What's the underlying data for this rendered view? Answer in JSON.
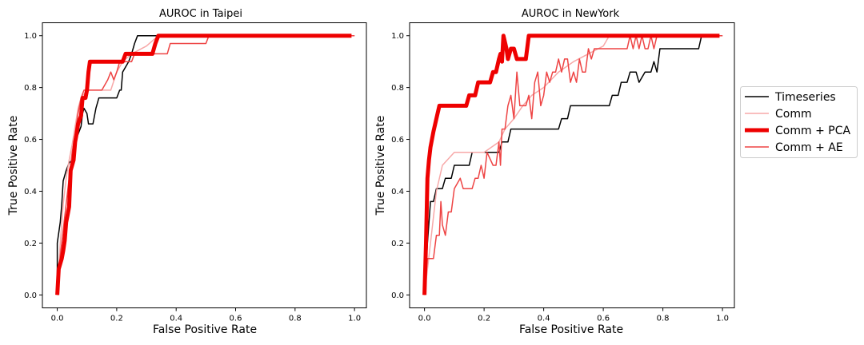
{
  "chart_data": [
    {
      "type": "line",
      "title": "AUROC in Taipei",
      "xlabel": "False Positive Rate",
      "ylabel": "True Positive Rate",
      "xlim": [
        -0.05,
        1.04
      ],
      "ylim": [
        -0.05,
        1.05
      ],
      "xticks": [
        "0.0",
        "0.2",
        "0.4",
        "0.6",
        "0.8",
        "1.0"
      ],
      "yticks": [
        "0.0",
        "0.2",
        "0.4",
        "0.6",
        "0.8",
        "1.0"
      ],
      "grid": false,
      "series": [
        {
          "name": "Timeseries",
          "points": [
            [
              0,
              0
            ],
            [
              0,
              0.2
            ],
            [
              0.01,
              0.28
            ],
            [
              0.015,
              0.35
            ],
            [
              0.02,
              0.44
            ],
            [
              0.03,
              0.48
            ],
            [
              0.04,
              0.51
            ],
            [
              0.05,
              0.52
            ],
            [
              0.055,
              0.58
            ],
            [
              0.06,
              0.6
            ],
            [
              0.07,
              0.62
            ],
            [
              0.08,
              0.65
            ],
            [
              0.085,
              0.7
            ],
            [
              0.09,
              0.72
            ],
            [
              0.1,
              0.7
            ],
            [
              0.105,
              0.66
            ],
            [
              0.12,
              0.66
            ],
            [
              0.13,
              0.72
            ],
            [
              0.14,
              0.76
            ],
            [
              0.2,
              0.76
            ],
            [
              0.21,
              0.79
            ],
            [
              0.215,
              0.79
            ],
            [
              0.22,
              0.86
            ],
            [
              0.24,
              0.9
            ],
            [
              0.25,
              0.93
            ],
            [
              0.26,
              0.97
            ],
            [
              0.27,
              1.0
            ],
            [
              1.0,
              1.0
            ]
          ]
        },
        {
          "name": "Comm",
          "points": [
            [
              0,
              0
            ],
            [
              0.01,
              0.2
            ],
            [
              0.02,
              0.35
            ],
            [
              0.03,
              0.45
            ],
            [
              0.04,
              0.52
            ],
            [
              0.05,
              0.58
            ],
            [
              0.06,
              0.65
            ],
            [
              0.07,
              0.72
            ],
            [
              0.08,
              0.76
            ],
            [
              0.1,
              0.79
            ],
            [
              0.18,
              0.79
            ],
            [
              0.2,
              0.86
            ],
            [
              0.22,
              0.9
            ],
            [
              0.25,
              0.93
            ],
            [
              0.3,
              0.96
            ],
            [
              0.34,
              1.0
            ],
            [
              1.0,
              1.0
            ]
          ]
        },
        {
          "name": "Comm + PCA",
          "points": [
            [
              0,
              0
            ],
            [
              0.005,
              0.1
            ],
            [
              0.015,
              0.14
            ],
            [
              0.02,
              0.17
            ],
            [
              0.025,
              0.21
            ],
            [
              0.03,
              0.28
            ],
            [
              0.035,
              0.31
            ],
            [
              0.04,
              0.34
            ],
            [
              0.045,
              0.48
            ],
            [
              0.055,
              0.52
            ],
            [
              0.06,
              0.59
            ],
            [
              0.065,
              0.62
            ],
            [
              0.07,
              0.66
            ],
            [
              0.08,
              0.69
            ],
            [
              0.085,
              0.76
            ],
            [
              0.095,
              0.76
            ],
            [
              0.1,
              0.79
            ],
            [
              0.105,
              0.86
            ],
            [
              0.11,
              0.9
            ],
            [
              0.22,
              0.9
            ],
            [
              0.23,
              0.93
            ],
            [
              0.32,
              0.93
            ],
            [
              0.33,
              0.97
            ],
            [
              0.34,
              1.0
            ],
            [
              0.99,
              1.0
            ]
          ]
        },
        {
          "name": "Comm + AE",
          "points": [
            [
              0,
              0
            ],
            [
              0.01,
              0.15
            ],
            [
              0.02,
              0.25
            ],
            [
              0.03,
              0.35
            ],
            [
              0.04,
              0.45
            ],
            [
              0.05,
              0.55
            ],
            [
              0.06,
              0.62
            ],
            [
              0.07,
              0.7
            ],
            [
              0.08,
              0.76
            ],
            [
              0.09,
              0.79
            ],
            [
              0.15,
              0.79
            ],
            [
              0.17,
              0.83
            ],
            [
              0.18,
              0.86
            ],
            [
              0.19,
              0.83
            ],
            [
              0.2,
              0.86
            ],
            [
              0.21,
              0.9
            ],
            [
              0.25,
              0.9
            ],
            [
              0.26,
              0.93
            ],
            [
              0.37,
              0.93
            ],
            [
              0.38,
              0.97
            ],
            [
              0.5,
              0.97
            ],
            [
              0.51,
              1.0
            ],
            [
              1.0,
              1.0
            ]
          ]
        }
      ]
    },
    {
      "type": "line",
      "title": "AUROC in NewYork",
      "xlabel": "False Positive Rate",
      "ylabel": "True Positive Rate",
      "xlim": [
        -0.05,
        1.04
      ],
      "ylim": [
        -0.05,
        1.05
      ],
      "xticks": [
        "0.0",
        "0.2",
        "0.4",
        "0.6",
        "0.8",
        "1.0"
      ],
      "yticks": [
        "0.0",
        "0.2",
        "0.4",
        "0.6",
        "0.8",
        "1.0"
      ],
      "grid": false,
      "series": [
        {
          "name": "Timeseries",
          "points": [
            [
              0,
              0
            ],
            [
              0.01,
              0.2
            ],
            [
              0.02,
              0.36
            ],
            [
              0.03,
              0.36
            ],
            [
              0.04,
              0.41
            ],
            [
              0.06,
              0.41
            ],
            [
              0.07,
              0.45
            ],
            [
              0.09,
              0.45
            ],
            [
              0.1,
              0.5
            ],
            [
              0.15,
              0.5
            ],
            [
              0.16,
              0.55
            ],
            [
              0.25,
              0.55
            ],
            [
              0.26,
              0.59
            ],
            [
              0.28,
              0.59
            ],
            [
              0.29,
              0.64
            ],
            [
              0.45,
              0.64
            ],
            [
              0.46,
              0.68
            ],
            [
              0.48,
              0.68
            ],
            [
              0.49,
              0.73
            ],
            [
              0.62,
              0.73
            ],
            [
              0.63,
              0.77
            ],
            [
              0.65,
              0.77
            ],
            [
              0.66,
              0.82
            ],
            [
              0.68,
              0.82
            ],
            [
              0.69,
              0.86
            ],
            [
              0.71,
              0.86
            ],
            [
              0.72,
              0.82
            ],
            [
              0.74,
              0.86
            ],
            [
              0.76,
              0.86
            ],
            [
              0.77,
              0.9
            ],
            [
              0.78,
              0.86
            ],
            [
              0.79,
              0.95
            ],
            [
              0.92,
              0.95
            ],
            [
              0.93,
              1.0
            ],
            [
              1.0,
              1.0
            ]
          ]
        },
        {
          "name": "Comm",
          "points": [
            [
              0,
              0
            ],
            [
              0.02,
              0.2
            ],
            [
              0.04,
              0.4
            ],
            [
              0.06,
              0.5
            ],
            [
              0.1,
              0.55
            ],
            [
              0.15,
              0.55
            ],
            [
              0.2,
              0.55
            ],
            [
              0.25,
              0.59
            ],
            [
              0.27,
              0.64
            ],
            [
              0.3,
              0.68
            ],
            [
              0.33,
              0.73
            ],
            [
              0.36,
              0.77
            ],
            [
              0.4,
              0.8
            ],
            [
              0.45,
              0.86
            ],
            [
              0.5,
              0.9
            ],
            [
              0.55,
              0.93
            ],
            [
              0.6,
              0.96
            ],
            [
              0.62,
              1.0
            ],
            [
              1.0,
              1.0
            ]
          ]
        },
        {
          "name": "Comm + PCA",
          "points": [
            [
              0,
              0
            ],
            [
              0.005,
              0.2
            ],
            [
              0.01,
              0.45
            ],
            [
              0.015,
              0.52
            ],
            [
              0.02,
              0.57
            ],
            [
              0.03,
              0.63
            ],
            [
              0.04,
              0.68
            ],
            [
              0.05,
              0.73
            ],
            [
              0.14,
              0.73
            ],
            [
              0.15,
              0.77
            ],
            [
              0.17,
              0.77
            ],
            [
              0.18,
              0.82
            ],
            [
              0.22,
              0.82
            ],
            [
              0.23,
              0.86
            ],
            [
              0.24,
              0.86
            ],
            [
              0.25,
              0.91
            ],
            [
              0.255,
              0.93
            ],
            [
              0.26,
              0.9
            ],
            [
              0.265,
              1.0
            ],
            [
              0.275,
              0.95
            ],
            [
              0.28,
              0.91
            ],
            [
              0.29,
              0.95
            ],
            [
              0.3,
              0.95
            ],
            [
              0.31,
              0.91
            ],
            [
              0.34,
              0.91
            ],
            [
              0.35,
              1.0
            ],
            [
              0.99,
              1.0
            ]
          ]
        },
        {
          "name": "Comm + AE",
          "points": [
            [
              0,
              0
            ],
            [
              0.01,
              0.14
            ],
            [
              0.03,
              0.14
            ],
            [
              0.04,
              0.23
            ],
            [
              0.05,
              0.23
            ],
            [
              0.055,
              0.36
            ],
            [
              0.06,
              0.27
            ],
            [
              0.07,
              0.23
            ],
            [
              0.08,
              0.32
            ],
            [
              0.09,
              0.32
            ],
            [
              0.1,
              0.41
            ],
            [
              0.12,
              0.45
            ],
            [
              0.13,
              0.41
            ],
            [
              0.16,
              0.41
            ],
            [
              0.17,
              0.45
            ],
            [
              0.18,
              0.45
            ],
            [
              0.19,
              0.5
            ],
            [
              0.2,
              0.45
            ],
            [
              0.21,
              0.55
            ],
            [
              0.23,
              0.5
            ],
            [
              0.24,
              0.5
            ],
            [
              0.25,
              0.59
            ],
            [
              0.255,
              0.5
            ],
            [
              0.26,
              0.64
            ],
            [
              0.27,
              0.64
            ],
            [
              0.28,
              0.73
            ],
            [
              0.29,
              0.77
            ],
            [
              0.3,
              0.68
            ],
            [
              0.31,
              0.86
            ],
            [
              0.32,
              0.73
            ],
            [
              0.34,
              0.73
            ],
            [
              0.35,
              0.77
            ],
            [
              0.36,
              0.68
            ],
            [
              0.37,
              0.82
            ],
            [
              0.38,
              0.86
            ],
            [
              0.39,
              0.73
            ],
            [
              0.4,
              0.77
            ],
            [
              0.41,
              0.86
            ],
            [
              0.42,
              0.82
            ],
            [
              0.43,
              0.86
            ],
            [
              0.44,
              0.86
            ],
            [
              0.45,
              0.91
            ],
            [
              0.46,
              0.86
            ],
            [
              0.47,
              0.91
            ],
            [
              0.48,
              0.91
            ],
            [
              0.49,
              0.82
            ],
            [
              0.5,
              0.86
            ],
            [
              0.51,
              0.82
            ],
            [
              0.52,
              0.91
            ],
            [
              0.53,
              0.86
            ],
            [
              0.54,
              0.86
            ],
            [
              0.55,
              0.95
            ],
            [
              0.56,
              0.91
            ],
            [
              0.57,
              0.95
            ],
            [
              0.68,
              0.95
            ],
            [
              0.69,
              1.0
            ],
            [
              0.7,
              0.95
            ],
            [
              0.71,
              1.0
            ],
            [
              0.72,
              0.95
            ],
            [
              0.73,
              1.0
            ],
            [
              0.74,
              0.95
            ],
            [
              0.75,
              0.95
            ],
            [
              0.76,
              1.0
            ],
            [
              0.77,
              0.95
            ],
            [
              0.78,
              1.0
            ],
            [
              1.0,
              1.0
            ]
          ]
        }
      ]
    }
  ],
  "legend": {
    "placement": "right",
    "items": [
      {
        "label": "Timeseries",
        "color": "#000000",
        "width": 1.5
      },
      {
        "label": "Comm",
        "color": "#f7a8a8",
        "width": 1.5
      },
      {
        "label": "Comm + PCA",
        "color": "#ee0000",
        "width": 5
      },
      {
        "label": "Comm + AE",
        "color": "#ee4444",
        "width": 1.5
      }
    ]
  },
  "series_styles": {
    "Timeseries": {
      "color": "#000000",
      "width": 1.5
    },
    "Comm": {
      "color": "#f7a8a8",
      "width": 1.5
    },
    "Comm + PCA": {
      "color": "#ee0000",
      "width": 5
    },
    "Comm + AE": {
      "color": "#ee4444",
      "width": 1.5
    }
  }
}
